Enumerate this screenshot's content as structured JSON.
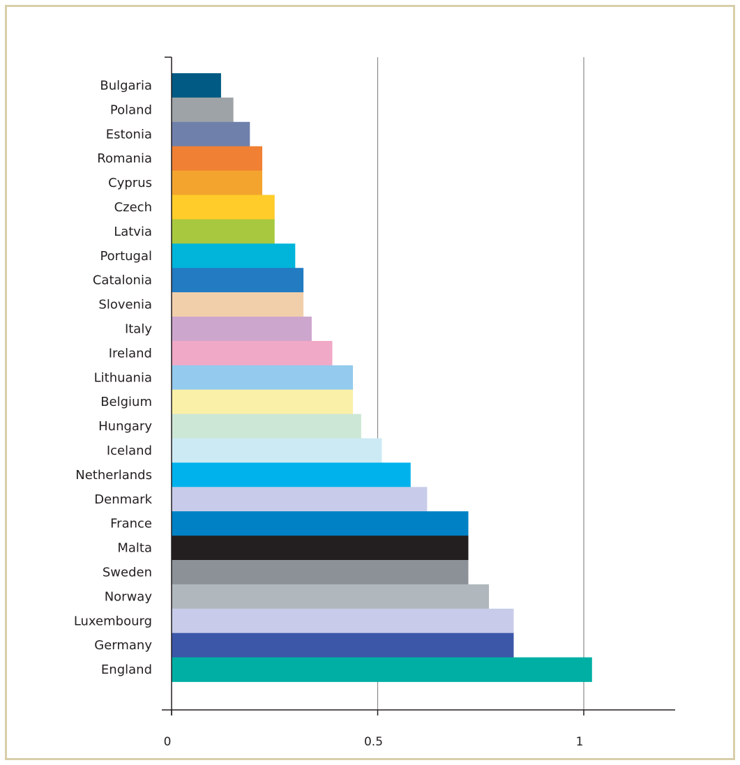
{
  "chart_data": {
    "type": "bar",
    "orientation": "horizontal",
    "title": "",
    "xlabel": "",
    "ylabel": "",
    "xlim": [
      0,
      1.22
    ],
    "x_ticks": [
      0,
      0.5,
      1
    ],
    "x_tick_labels": [
      "0",
      "0.5",
      "1"
    ],
    "grid": "vertical",
    "legend": "none",
    "categories": [
      "Bulgaria",
      "Poland",
      "Estonia",
      "Romania",
      "Cyprus",
      "Czech",
      "Latvia",
      "Portugal",
      "Catalonia",
      "Slovenia",
      "Italy",
      "Ireland",
      "Lithuania",
      "Belgium",
      "Hungary",
      "Iceland",
      "Netherlands",
      "Denmark",
      "France",
      "Malta",
      "Sweden",
      "Norway",
      "Luxembourg",
      "Germany",
      "England"
    ],
    "values": [
      0.12,
      0.15,
      0.19,
      0.22,
      0.22,
      0.25,
      0.25,
      0.3,
      0.32,
      0.32,
      0.34,
      0.39,
      0.44,
      0.44,
      0.46,
      0.51,
      0.58,
      0.62,
      0.72,
      0.72,
      0.72,
      0.77,
      0.83,
      0.83,
      1.02
    ],
    "colors": [
      "#005a83",
      "#9da3a6",
      "#6f80ab",
      "#f08034",
      "#f3a42e",
      "#ffcc29",
      "#a7c83f",
      "#00b4da",
      "#237bc2",
      "#f2cfab",
      "#cda6ce",
      "#f0a9c6",
      "#94caed",
      "#faf0a8",
      "#cce7d5",
      "#cceaf4",
      "#00b2ec",
      "#c8ccea",
      "#0081c6",
      "#231f20",
      "#8b9197",
      "#b0b8bd",
      "#c8ccea",
      "#3c57a8",
      "#00afa4"
    ]
  }
}
